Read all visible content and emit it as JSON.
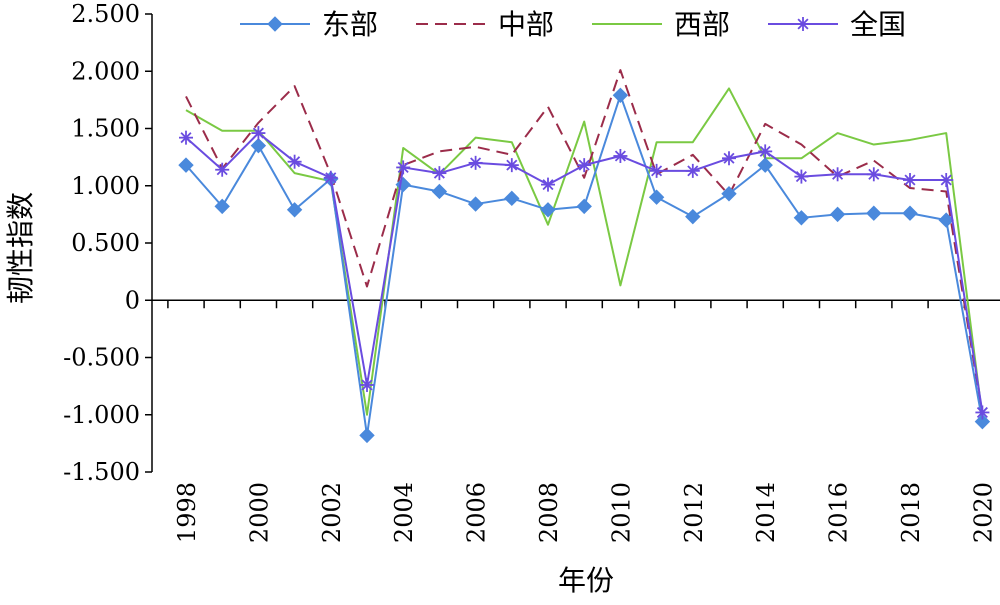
{
  "chart_data": {
    "type": "line",
    "xlabel": "年份",
    "ylabel": "韧性指数",
    "ylim": [
      -1.5,
      2.5
    ],
    "yticks": [
      -1.5,
      -1.0,
      -0.5,
      0,
      0.5,
      1.0,
      1.5,
      2.0,
      2.5
    ],
    "ytick_labels": [
      "-1.500",
      "-1.000",
      "-0.500",
      "0",
      "0.500",
      "1.000",
      "1.500",
      "2.000",
      "2.500"
    ],
    "x": [
      1998,
      1999,
      2000,
      2001,
      2002,
      2003,
      2004,
      2005,
      2006,
      2007,
      2008,
      2009,
      2010,
      2011,
      2012,
      2013,
      2014,
      2015,
      2016,
      2017,
      2018,
      2019,
      2020
    ],
    "xtick_labels": [
      "1998",
      "2000",
      "2002",
      "2004",
      "2006",
      "2008",
      "2010",
      "2012",
      "2014",
      "2016",
      "2018",
      "2020"
    ],
    "grid": false,
    "legend_position": "top",
    "series": [
      {
        "name": "东部",
        "color": "#4a89dc",
        "style": "solid-diamond",
        "values": [
          1.18,
          0.82,
          1.35,
          0.79,
          1.06,
          -1.18,
          1.01,
          0.95,
          0.84,
          0.89,
          0.79,
          0.82,
          1.79,
          0.9,
          0.73,
          0.93,
          1.18,
          0.72,
          0.75,
          0.76,
          0.76,
          0.7,
          -1.06
        ]
      },
      {
        "name": "中部",
        "color": "#9b2c4a",
        "style": "dashed",
        "values": [
          1.78,
          1.15,
          1.55,
          1.87,
          1.1,
          0.12,
          1.18,
          1.3,
          1.34,
          1.27,
          1.69,
          1.07,
          2.01,
          1.1,
          1.27,
          0.92,
          1.54,
          1.36,
          1.08,
          1.22,
          0.98,
          0.95,
          -1.0
        ]
      },
      {
        "name": "西部",
        "color": "#7ac943",
        "style": "solid",
        "values": [
          1.66,
          1.48,
          1.48,
          1.11,
          1.04,
          -1.0,
          1.33,
          1.1,
          1.42,
          1.38,
          0.66,
          1.56,
          0.13,
          1.38,
          1.38,
          1.85,
          1.24,
          1.24,
          1.46,
          1.36,
          1.4,
          1.46,
          -1.02
        ]
      },
      {
        "name": "全国",
        "color": "#6a4ce0",
        "style": "solid-star",
        "values": [
          1.42,
          1.14,
          1.46,
          1.21,
          1.07,
          -0.74,
          1.16,
          1.11,
          1.2,
          1.18,
          1.01,
          1.18,
          1.26,
          1.13,
          1.13,
          1.24,
          1.3,
          1.08,
          1.1,
          1.1,
          1.05,
          1.05,
          -0.98
        ]
      }
    ]
  }
}
